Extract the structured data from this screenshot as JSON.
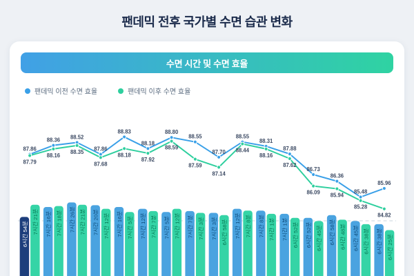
{
  "page": {
    "title": "팬데믹 전후 국가별 수면 습관 변화"
  },
  "card": {
    "header": "수면 시간 및 수면 효율",
    "gradient": [
      "#41a0e6",
      "#2fd3a2"
    ]
  },
  "legend": [
    {
      "label": "팬데믹 이전 수면 효율",
      "color": "#3aa0e8"
    },
    {
      "label": "팬데믹 이후 수면 효율",
      "color": "#2ecf9e"
    }
  ],
  "chart_data": {
    "type": "line+bar",
    "title": "수면 시간 및 수면 효율",
    "x_count": 16,
    "ylim": [
      84.5,
      89.2
    ],
    "grid": "single dashed horizontal reference line",
    "legend_position": "top-left",
    "series": [
      {
        "name": "팬데믹 이전 수면 효율",
        "color": "#3aa0e8",
        "values": [
          87.86,
          88.36,
          88.52,
          87.86,
          88.83,
          88.18,
          88.8,
          88.55,
          87.7,
          88.55,
          88.31,
          87.88,
          86.73,
          86.36,
          85.48,
          85.96
        ]
      },
      {
        "name": "팬데믹 이후 수면 효율",
        "color": "#2ecf9e",
        "values": [
          87.79,
          88.16,
          88.35,
          87.68,
          88.18,
          87.92,
          88.59,
          87.59,
          87.14,
          88.44,
          88.16,
          87.62,
          86.09,
          85.94,
          85.28,
          84.82
        ]
      }
    ],
    "bars": {
      "labels_pre": [
        "6시간 54분",
        "7시간 16분",
        "7시간 26분",
        "7시간 20분",
        "7시간 16분",
        "7시간 12분",
        "7시간 5분",
        "7시간 7분",
        "7시간 3분",
        "7시간 12분",
        "7시간 8분",
        "7시간 1분",
        "6시간 52분",
        "6시간 58분",
        "6시간 45분",
        "6시간 38분"
      ],
      "labels_post": [
        "7시간 21분",
        "7시간 18분",
        "7시간 21분",
        "7시간 12분",
        "7시간 5분",
        "7시간 7분",
        "7시간 12분",
        "7시간 3분",
        "6시간 58분",
        "7시간 8분",
        "7시간 1분",
        "6시간 52분",
        "6시간 45분",
        "6시간 48분",
        "6시간 38분",
        "6시간 25분"
      ],
      "minutes_pre": [
        414,
        436,
        446,
        440,
        436,
        432,
        425,
        427,
        423,
        432,
        428,
        421,
        412,
        418,
        405,
        398
      ],
      "minutes_post": [
        441,
        438,
        441,
        432,
        425,
        427,
        432,
        423,
        418,
        428,
        421,
        412,
        405,
        408,
        398,
        385
      ],
      "colors": {
        "pre": "#4aa3e0",
        "post": "#35d4a6",
        "first": "#1d3e7c",
        "text_pre": "#0f4e7e",
        "text_post": "#067a55",
        "text_first": "#ffffff"
      }
    }
  }
}
